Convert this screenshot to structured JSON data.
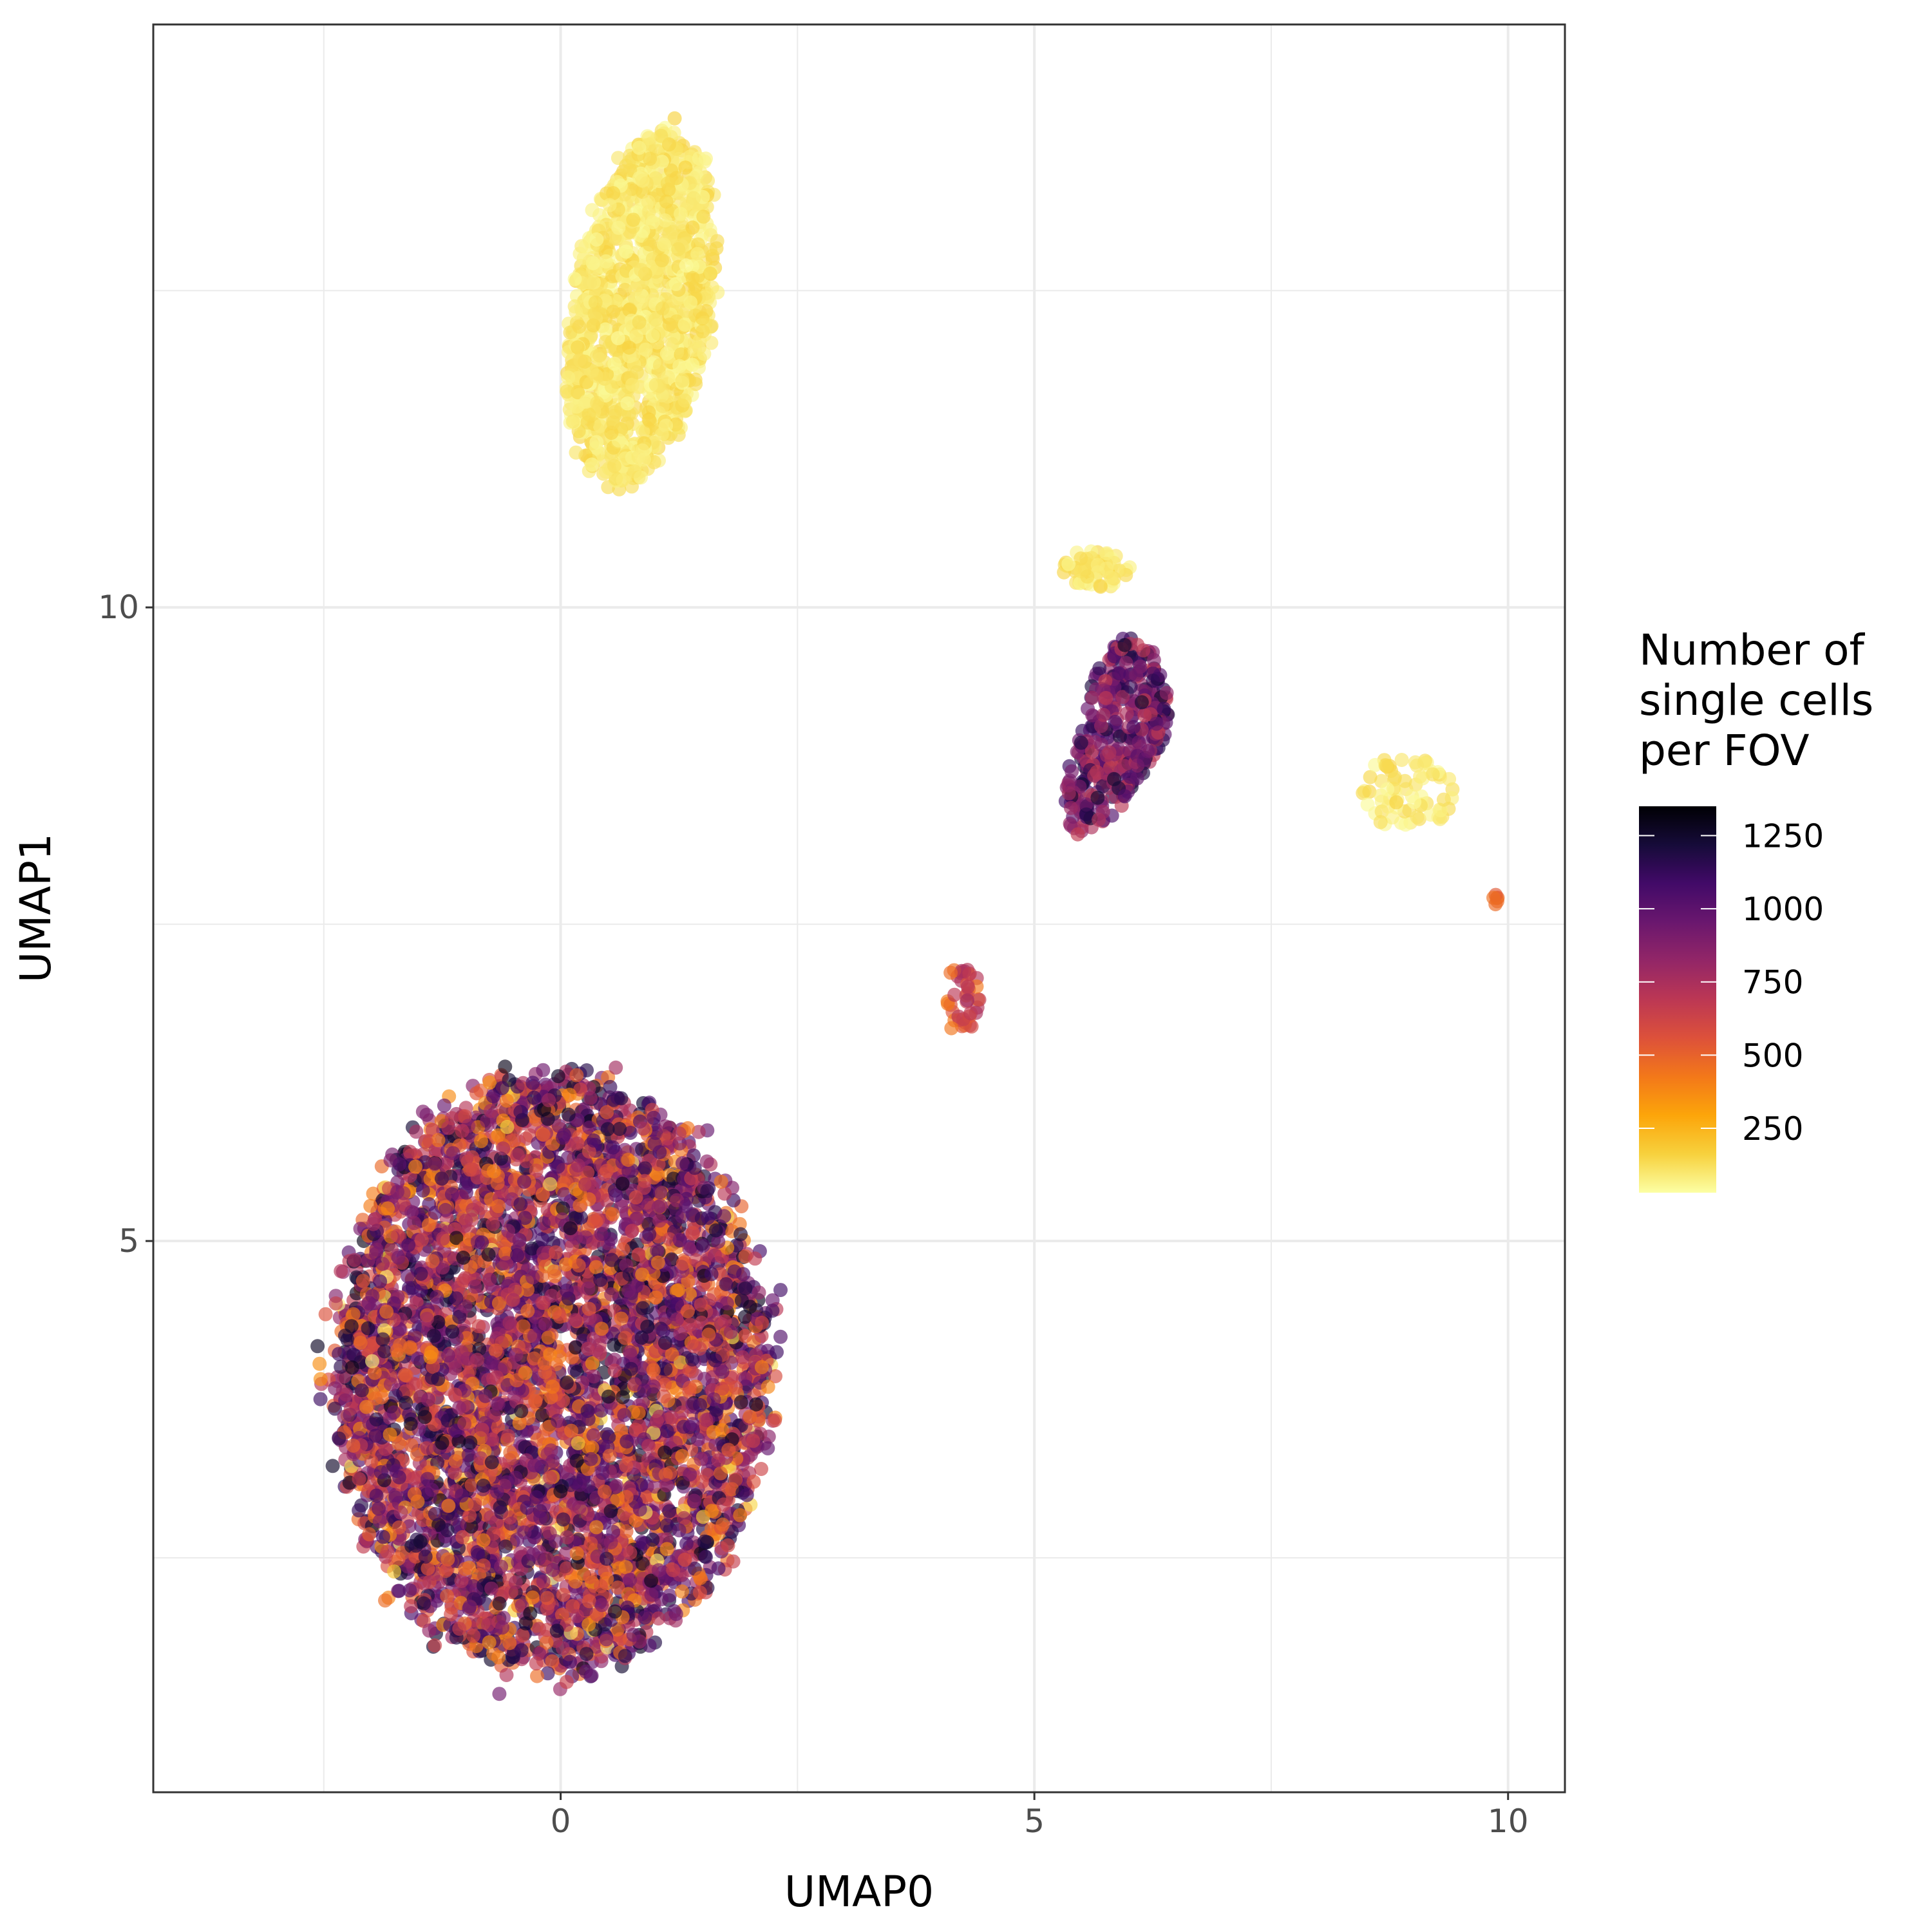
{
  "chart_data": {
    "type": "scatter",
    "xlabel": "UMAP0",
    "ylabel": "UMAP1",
    "xlim": [
      -4.3,
      10.6
    ],
    "ylim": [
      0.65,
      14.6
    ],
    "x_ticks": [
      0,
      5,
      10
    ],
    "y_ticks": [
      5,
      10
    ],
    "x_tick_labels": [
      "0",
      "5",
      "10"
    ],
    "y_tick_labels": [
      "5",
      "10"
    ],
    "grid": true,
    "point_alpha": 0.65,
    "colorbar": {
      "title": [
        "Number of",
        "single cells",
        "per FOV"
      ],
      "colormap": "inferno (reversed)",
      "range": [
        30,
        1350
      ],
      "ticks": [
        250,
        500,
        750,
        1000,
        1250
      ],
      "tick_labels": [
        "250",
        "500",
        "750",
        "1000",
        "1250"
      ],
      "stops": [
        "#fcffa4",
        "#f7d13d",
        "#fca50a",
        "#f37819",
        "#dd513a",
        "#bc3754",
        "#932667",
        "#6a176e",
        "#420a68",
        "#160b39",
        "#000004"
      ]
    },
    "legend_position": "right",
    "clusters": [
      {
        "name": "",
        "center": [
          0.85,
          12.35
        ],
        "spread": [
          0.75,
          1.4
        ],
        "count_range": [
          40,
          160
        ],
        "n_points": 1300
      },
      {
        "name": "",
        "center": [
          -0.1,
          3.95
        ],
        "spread": [
          2.3,
          2.35
        ],
        "count_range": [
          350,
          1300
        ],
        "n_points": 5200
      },
      {
        "name": "",
        "center": [
          5.95,
          9.0
        ],
        "spread": [
          0.45,
          0.75
        ],
        "count_range": [
          650,
          1250
        ],
        "n_points": 380
      },
      {
        "name": "",
        "center": [
          5.65,
          10.3
        ],
        "spread": [
          0.35,
          0.15
        ],
        "count_range": [
          40,
          160
        ],
        "n_points": 60
      },
      {
        "name": "",
        "center": [
          8.95,
          8.55
        ],
        "spread": [
          0.5,
          0.3
        ],
        "count_range": [
          40,
          160
        ],
        "n_points": 70
      },
      {
        "name": "",
        "center": [
          4.25,
          6.9
        ],
        "spread": [
          0.18,
          0.3
        ],
        "count_range": [
          400,
          800
        ],
        "n_points": 40
      },
      {
        "name": "",
        "center": [
          9.85,
          7.7
        ],
        "spread": [
          0.05,
          0.05
        ],
        "count_range": [
          450,
          550
        ],
        "n_points": 6
      }
    ]
  }
}
